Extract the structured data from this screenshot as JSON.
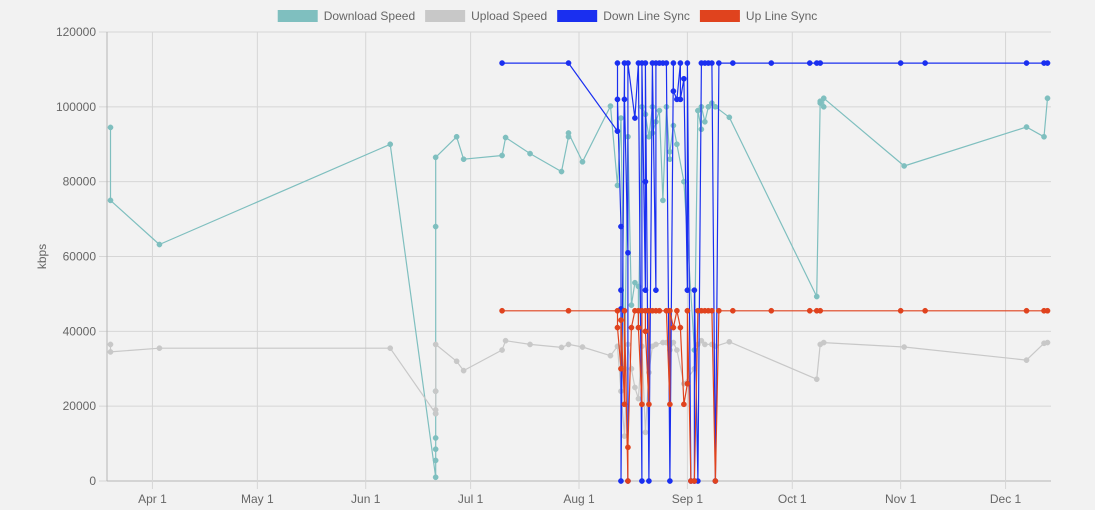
{
  "chart_data": {
    "type": "line",
    "title": "",
    "ylabel": "kbps",
    "xlabel": "",
    "ylim": [
      0,
      120000
    ],
    "y_ticks": [
      0,
      20000,
      40000,
      60000,
      80000,
      100000,
      120000
    ],
    "y_tick_labels": [
      "0",
      "20000",
      "40000",
      "60000",
      "80000",
      "100000",
      "120000"
    ],
    "x_range": [
      "2022-03-19",
      "2022-12-14"
    ],
    "x_ticks": [
      {
        "date": "2022-04-01",
        "label": "Apr 1"
      },
      {
        "date": "2022-05-01",
        "label": "May 1"
      },
      {
        "date": "2022-06-01",
        "label": "Jun 1"
      },
      {
        "date": "2022-07-01",
        "label": "Jul 1"
      },
      {
        "date": "2022-08-01",
        "label": "Aug 1"
      },
      {
        "date": "2022-09-01",
        "label": "Sep 1"
      },
      {
        "date": "2022-10-01",
        "label": "Oct 1"
      },
      {
        "date": "2022-11-01",
        "label": "Nov 1"
      },
      {
        "date": "2022-12-01",
        "label": "Dec 1"
      }
    ],
    "grid": true,
    "legend_position": "top-center",
    "series": [
      {
        "name": "Download Speed",
        "color": "#7fbfbf",
        "points": [
          [
            "2022-03-20",
            94500
          ],
          [
            "2022-03-20",
            75000
          ],
          [
            "2022-04-03",
            63200
          ],
          [
            "2022-06-08",
            90000
          ],
          [
            "2022-06-21",
            1000
          ],
          [
            "2022-06-21",
            5500
          ],
          [
            "2022-06-21",
            8500
          ],
          [
            "2022-06-21",
            11500
          ],
          [
            "2022-06-21",
            18000
          ],
          [
            "2022-06-21",
            24000
          ],
          [
            "2022-06-21",
            68000
          ],
          [
            "2022-06-21",
            86500
          ],
          [
            "2022-06-27",
            92000
          ],
          [
            "2022-06-29",
            86000
          ],
          [
            "2022-07-10",
            87000
          ],
          [
            "2022-07-11",
            91800
          ],
          [
            "2022-07-18",
            87500
          ],
          [
            "2022-07-27",
            82700
          ],
          [
            "2022-07-29",
            92000
          ],
          [
            "2022-07-29",
            93000
          ],
          [
            "2022-08-02",
            85300
          ],
          [
            "2022-08-10",
            100200
          ],
          [
            "2022-08-12",
            79000
          ],
          [
            "2022-08-13",
            97000
          ],
          [
            "2022-08-14",
            30000
          ],
          [
            "2022-08-15",
            92000
          ],
          [
            "2022-08-16",
            47000
          ],
          [
            "2022-08-17",
            53000
          ],
          [
            "2022-08-18",
            52000
          ],
          [
            "2022-08-18",
            41000
          ],
          [
            "2022-08-19",
            100000
          ],
          [
            "2022-08-20",
            98000
          ],
          [
            "2022-08-21",
            92000
          ],
          [
            "2022-08-22",
            100000
          ],
          [
            "2022-08-22",
            93000
          ],
          [
            "2022-08-23",
            96000
          ],
          [
            "2022-08-24",
            99000
          ],
          [
            "2022-08-25",
            75000
          ],
          [
            "2022-08-26",
            100000
          ],
          [
            "2022-08-27",
            86000
          ],
          [
            "2022-08-27",
            88000
          ],
          [
            "2022-08-28",
            95000
          ],
          [
            "2022-08-29",
            90000
          ],
          [
            "2022-08-31",
            80000
          ],
          [
            "2022-09-03",
            35000
          ],
          [
            "2022-09-04",
            99000
          ],
          [
            "2022-09-05",
            94000
          ],
          [
            "2022-09-05",
            100000
          ],
          [
            "2022-09-06",
            96000
          ],
          [
            "2022-09-07",
            100000
          ],
          [
            "2022-09-08",
            101000
          ],
          [
            "2022-09-09",
            100000
          ],
          [
            "2022-09-13",
            97200
          ],
          [
            "2022-10-08",
            49300
          ],
          [
            "2022-10-09",
            101500
          ],
          [
            "2022-10-09",
            101000
          ],
          [
            "2022-10-10",
            100000
          ],
          [
            "2022-10-10",
            102300
          ],
          [
            "2022-11-02",
            84200
          ],
          [
            "2022-12-07",
            94600
          ],
          [
            "2022-12-12",
            92000
          ],
          [
            "2022-12-13",
            102300
          ]
        ]
      },
      {
        "name": "Upload Speed",
        "color": "#c8c8c8",
        "points": [
          [
            "2022-03-20",
            36500
          ],
          [
            "2022-03-20",
            34500
          ],
          [
            "2022-04-03",
            35500
          ],
          [
            "2022-06-08",
            35500
          ],
          [
            "2022-06-21",
            18000
          ],
          [
            "2022-06-21",
            19000
          ],
          [
            "2022-06-21",
            24000
          ],
          [
            "2022-06-21",
            36500
          ],
          [
            "2022-06-27",
            32000
          ],
          [
            "2022-06-29",
            29500
          ],
          [
            "2022-07-10",
            35000
          ],
          [
            "2022-07-11",
            37500
          ],
          [
            "2022-07-18",
            36500
          ],
          [
            "2022-07-27",
            35700
          ],
          [
            "2022-07-29",
            36500
          ],
          [
            "2022-08-02",
            35800
          ],
          [
            "2022-08-10",
            33500
          ],
          [
            "2022-08-12",
            36000
          ],
          [
            "2022-08-13",
            24000
          ],
          [
            "2022-08-14",
            12000
          ],
          [
            "2022-08-15",
            36500
          ],
          [
            "2022-08-16",
            30000
          ],
          [
            "2022-08-17",
            25000
          ],
          [
            "2022-08-18",
            22000
          ],
          [
            "2022-08-19",
            36000
          ],
          [
            "2022-08-20",
            13000
          ],
          [
            "2022-08-21",
            29000
          ],
          [
            "2022-08-22",
            36000
          ],
          [
            "2022-08-23",
            36500
          ],
          [
            "2022-08-25",
            37000
          ],
          [
            "2022-08-26",
            37000
          ],
          [
            "2022-08-27",
            35000
          ],
          [
            "2022-08-28",
            37000
          ],
          [
            "2022-08-29",
            35000
          ],
          [
            "2022-08-31",
            26000
          ],
          [
            "2022-09-03",
            30000
          ],
          [
            "2022-09-04",
            36500
          ],
          [
            "2022-09-05",
            37500
          ],
          [
            "2022-09-06",
            36500
          ],
          [
            "2022-09-08",
            36500
          ],
          [
            "2022-09-09",
            36000
          ],
          [
            "2022-09-13",
            37200
          ],
          [
            "2022-10-08",
            27200
          ],
          [
            "2022-10-09",
            36500
          ],
          [
            "2022-10-10",
            37000
          ],
          [
            "2022-11-02",
            35800
          ],
          [
            "2022-12-07",
            32300
          ],
          [
            "2022-12-12",
            36800
          ],
          [
            "2022-12-13",
            37000
          ]
        ]
      },
      {
        "name": "Down Line Sync",
        "color": "#1a2ff0",
        "points": [
          [
            "2022-07-10",
            111700
          ],
          [
            "2022-07-29",
            111700
          ],
          [
            "2022-08-12",
            93500
          ],
          [
            "2022-08-12",
            111700
          ],
          [
            "2022-08-12",
            102000
          ],
          [
            "2022-08-13",
            68000
          ],
          [
            "2022-08-13",
            51000
          ],
          [
            "2022-08-13",
            46000
          ],
          [
            "2022-08-13",
            0
          ],
          [
            "2022-08-14",
            111700
          ],
          [
            "2022-08-14",
            102000
          ],
          [
            "2022-08-15",
            61000
          ],
          [
            "2022-08-15",
            0
          ],
          [
            "2022-08-15",
            111700
          ],
          [
            "2022-08-17",
            97000
          ],
          [
            "2022-08-18",
            111700
          ],
          [
            "2022-08-19",
            0
          ],
          [
            "2022-08-19",
            111700
          ],
          [
            "2022-08-20",
            51000
          ],
          [
            "2022-08-20",
            80000
          ],
          [
            "2022-08-20",
            111700
          ],
          [
            "2022-08-21",
            0
          ],
          [
            "2022-08-22",
            111700
          ],
          [
            "2022-08-23",
            51000
          ],
          [
            "2022-08-23",
            111700
          ],
          [
            "2022-08-24",
            111700
          ],
          [
            "2022-08-25",
            111700
          ],
          [
            "2022-08-26",
            111700
          ],
          [
            "2022-08-27",
            0
          ],
          [
            "2022-08-28",
            111700
          ],
          [
            "2022-08-28",
            104200
          ],
          [
            "2022-08-29",
            102000
          ],
          [
            "2022-08-30",
            111700
          ],
          [
            "2022-08-30",
            102000
          ],
          [
            "2022-08-31",
            107500
          ],
          [
            "2022-09-01",
            51000
          ],
          [
            "2022-09-01",
            111700
          ],
          [
            "2022-09-02",
            0
          ],
          [
            "2022-09-03",
            0
          ],
          [
            "2022-09-03",
            51000
          ],
          [
            "2022-09-04",
            0
          ],
          [
            "2022-09-05",
            111700
          ],
          [
            "2022-09-06",
            111700
          ],
          [
            "2022-09-07",
            111700
          ],
          [
            "2022-09-08",
            111700
          ],
          [
            "2022-09-09",
            0
          ],
          [
            "2022-09-10",
            111700
          ],
          [
            "2022-09-14",
            111700
          ],
          [
            "2022-09-25",
            111700
          ],
          [
            "2022-10-06",
            111700
          ],
          [
            "2022-10-08",
            111700
          ],
          [
            "2022-10-09",
            111700
          ],
          [
            "2022-11-01",
            111700
          ],
          [
            "2022-11-08",
            111700
          ],
          [
            "2022-12-07",
            111700
          ],
          [
            "2022-12-12",
            111700
          ],
          [
            "2022-12-13",
            111700
          ]
        ]
      },
      {
        "name": "Up Line Sync",
        "color": "#e0431e",
        "points": [
          [
            "2022-07-10",
            45500
          ],
          [
            "2022-07-29",
            45500
          ],
          [
            "2022-08-12",
            45500
          ],
          [
            "2022-08-12",
            41000
          ],
          [
            "2022-08-13",
            30000
          ],
          [
            "2022-08-13",
            43000
          ],
          [
            "2022-08-14",
            20500
          ],
          [
            "2022-08-14",
            45500
          ],
          [
            "2022-08-15",
            0
          ],
          [
            "2022-08-15",
            9000
          ],
          [
            "2022-08-16",
            41000
          ],
          [
            "2022-08-17",
            45500
          ],
          [
            "2022-08-18",
            45500
          ],
          [
            "2022-08-18",
            41000
          ],
          [
            "2022-08-19",
            20500
          ],
          [
            "2022-08-19",
            45500
          ],
          [
            "2022-08-20",
            45500
          ],
          [
            "2022-08-20",
            40000
          ],
          [
            "2022-08-21",
            20500
          ],
          [
            "2022-08-21",
            45500
          ],
          [
            "2022-08-22",
            45500
          ],
          [
            "2022-08-23",
            45500
          ],
          [
            "2022-08-24",
            45500
          ],
          [
            "2022-08-26",
            45500
          ],
          [
            "2022-08-27",
            20500
          ],
          [
            "2022-08-27",
            45500
          ],
          [
            "2022-08-28",
            41000
          ],
          [
            "2022-08-29",
            45500
          ],
          [
            "2022-08-30",
            41000
          ],
          [
            "2022-08-31",
            20500
          ],
          [
            "2022-09-01",
            26000
          ],
          [
            "2022-09-01",
            45500
          ],
          [
            "2022-09-02",
            0
          ],
          [
            "2022-09-03",
            0
          ],
          [
            "2022-09-04",
            45500
          ],
          [
            "2022-09-05",
            45500
          ],
          [
            "2022-09-06",
            45500
          ],
          [
            "2022-09-07",
            45500
          ],
          [
            "2022-09-08",
            45500
          ],
          [
            "2022-09-09",
            0
          ],
          [
            "2022-09-10",
            45500
          ],
          [
            "2022-09-14",
            45500
          ],
          [
            "2022-09-25",
            45500
          ],
          [
            "2022-10-06",
            45500
          ],
          [
            "2022-10-08",
            45500
          ],
          [
            "2022-10-09",
            45500
          ],
          [
            "2022-11-01",
            45500
          ],
          [
            "2022-11-08",
            45500
          ],
          [
            "2022-12-07",
            45500
          ],
          [
            "2022-12-12",
            45500
          ],
          [
            "2022-12-13",
            45500
          ]
        ]
      }
    ]
  }
}
